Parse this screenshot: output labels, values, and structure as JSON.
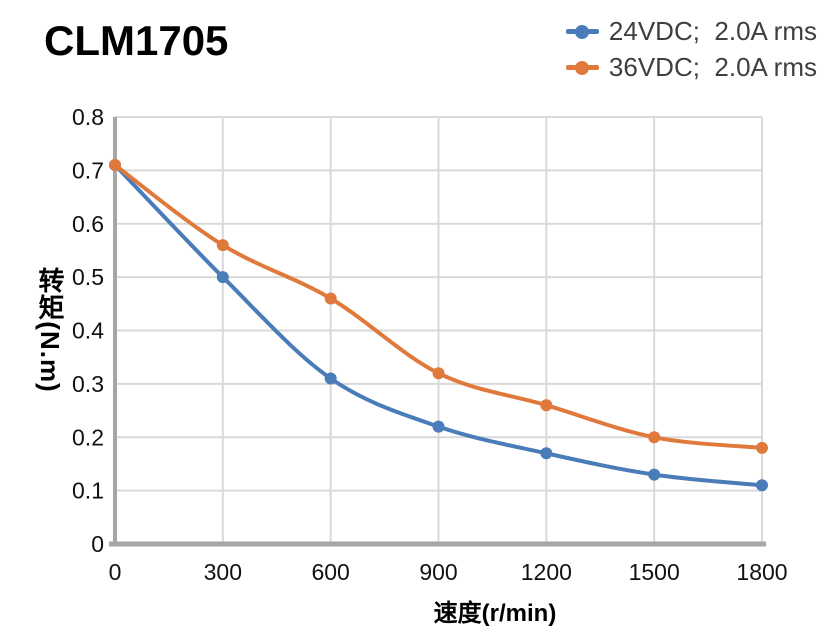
{
  "chart_data": {
    "type": "line",
    "title": "CLM1705",
    "xlabel": "速度(r/min)",
    "ylabel": "转矩(N.m)",
    "x": [
      0,
      300,
      600,
      900,
      1200,
      1500,
      1800
    ],
    "xtick_labels": [
      "0",
      "300",
      "600",
      "900",
      "1200",
      "1500",
      "1800"
    ],
    "ytick_labels": [
      "0",
      "0.1",
      "0.2",
      "0.3",
      "0.4",
      "0.5",
      "0.6",
      "0.7",
      "0.8"
    ],
    "xlim": [
      0,
      1800
    ],
    "ylim": [
      0,
      0.8
    ],
    "grid": true,
    "legend_position": "top-right",
    "series": [
      {
        "name": "24VDC;  2.0A rms",
        "color": "#4A7CBA",
        "values": [
          0.71,
          0.5,
          0.31,
          0.22,
          0.17,
          0.13,
          0.11
        ]
      },
      {
        "name": "36VDC;  2.0A rms",
        "color": "#E0793C",
        "values": [
          0.71,
          0.56,
          0.46,
          0.32,
          0.26,
          0.2,
          0.18
        ]
      }
    ],
    "colors": {
      "grid": "#D9D9D9",
      "axis": "#A6A6A6",
      "tick_text": "#111111",
      "legend_text": "#3F3F3F",
      "title_text": "#000000"
    }
  }
}
